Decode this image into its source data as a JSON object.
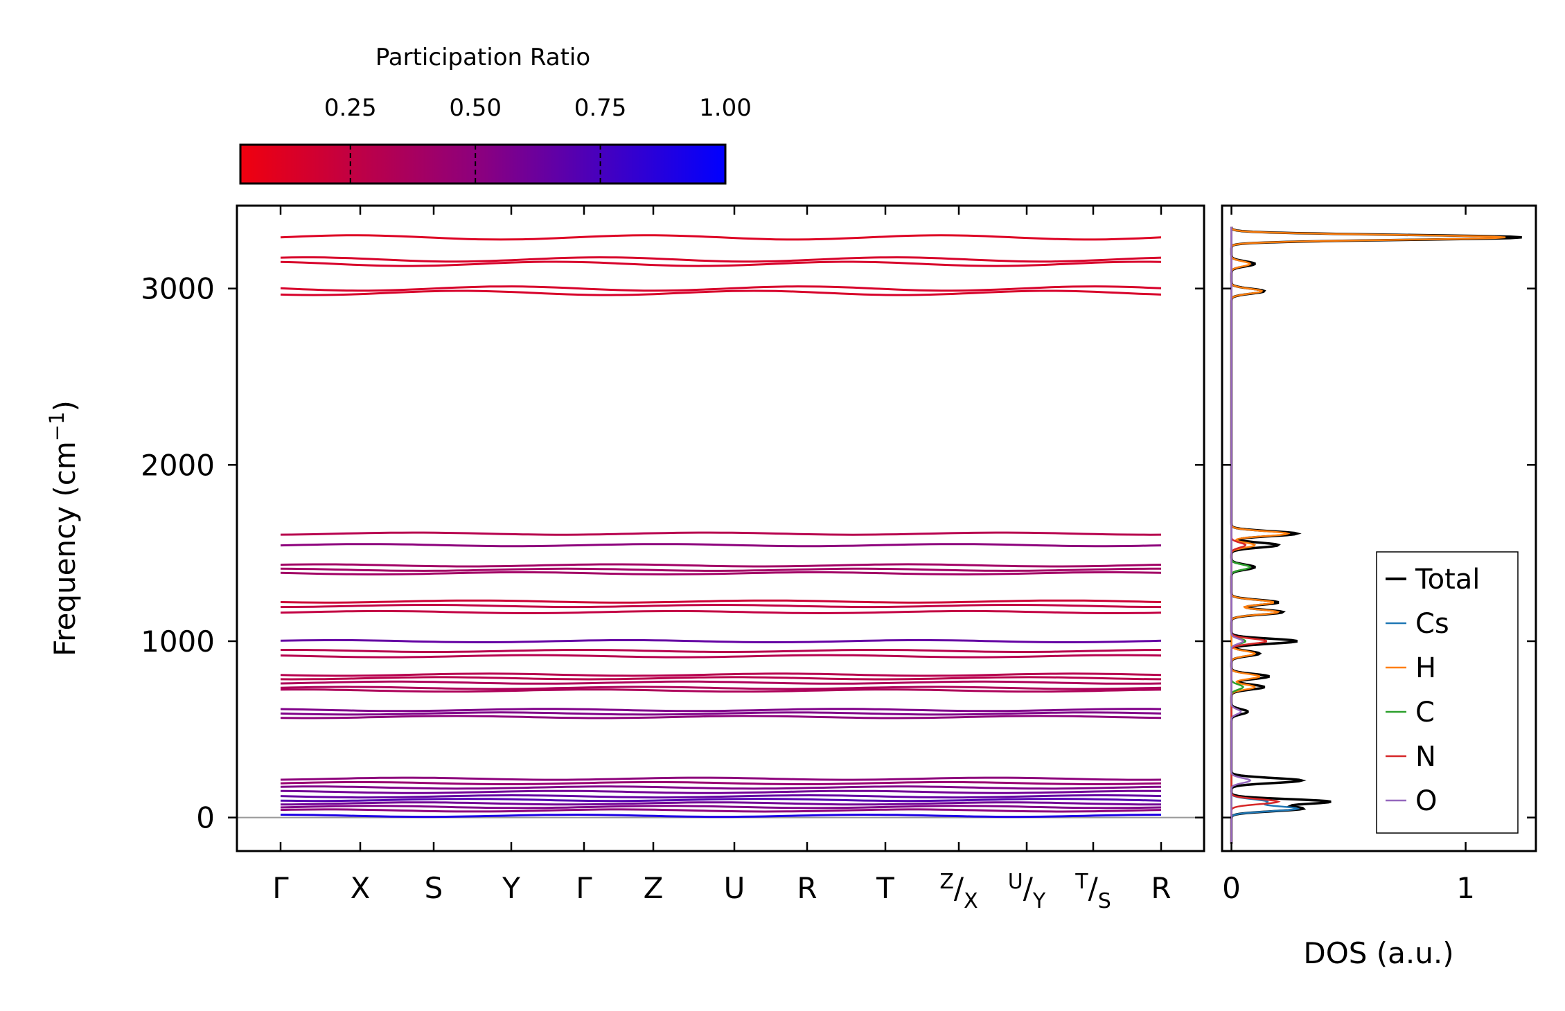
{
  "chart_data": [
    {
      "type": "line",
      "name": "phonon band structure",
      "ylabel": "Frequency (cm",
      "ylabel_sup": "−1",
      "ylabel_suffix": ")",
      "ylim": [
        -190,
        3470
      ],
      "yticks": [
        0,
        1000,
        2000,
        3000
      ],
      "ytick_labels": [
        "0",
        "1000",
        "2000",
        "3000"
      ],
      "xticks": [
        {
          "label": "Γ"
        },
        {
          "label": "X"
        },
        {
          "label": "S"
        },
        {
          "label": "Y"
        },
        {
          "label": "Γ"
        },
        {
          "label": "Z"
        },
        {
          "label": "U"
        },
        {
          "label": "R"
        },
        {
          "label": "T"
        },
        {
          "label": "X",
          "sup": "Z"
        },
        {
          "label": "Y",
          "sup": "U"
        },
        {
          "label": "S",
          "sup": "T"
        },
        {
          "label": "R"
        }
      ],
      "band_frequencies_cm1": [
        {
          "f": 3290,
          "pr": 0.12
        },
        {
          "f": 3165,
          "pr": 0.15
        },
        {
          "f": 3140,
          "pr": 0.15
        },
        {
          "f": 3000,
          "pr": 0.15
        },
        {
          "f": 2975,
          "pr": 0.15
        },
        {
          "f": 1610,
          "pr": 0.3
        },
        {
          "f": 1545,
          "pr": 0.5
        },
        {
          "f": 1430,
          "pr": 0.4
        },
        {
          "f": 1405,
          "pr": 0.4
        },
        {
          "f": 1385,
          "pr": 0.4
        },
        {
          "f": 1225,
          "pr": 0.2
        },
        {
          "f": 1200,
          "pr": 0.25
        },
        {
          "f": 1165,
          "pr": 0.25
        },
        {
          "f": 1000,
          "pr": 0.65
        },
        {
          "f": 945,
          "pr": 0.3
        },
        {
          "f": 915,
          "pr": 0.3
        },
        {
          "f": 810,
          "pr": 0.3
        },
        {
          "f": 790,
          "pr": 0.3
        },
        {
          "f": 765,
          "pr": 0.35
        },
        {
          "f": 735,
          "pr": 0.35
        },
        {
          "f": 720,
          "pr": 0.35
        },
        {
          "f": 610,
          "pr": 0.55
        },
        {
          "f": 590,
          "pr": 0.55
        },
        {
          "f": 570,
          "pr": 0.5
        },
        {
          "f": 220,
          "pr": 0.5
        },
        {
          "f": 195,
          "pr": 0.45
        },
        {
          "f": 170,
          "pr": 0.55
        },
        {
          "f": 145,
          "pr": 0.6
        },
        {
          "f": 120,
          "pr": 0.65
        },
        {
          "f": 100,
          "pr": 0.7
        },
        {
          "f": 80,
          "pr": 0.6
        },
        {
          "f": 60,
          "pr": 0.55
        },
        {
          "f": 40,
          "pr": 0.5
        },
        {
          "f": 10,
          "pr": 0.9
        }
      ],
      "colorbar": {
        "title": "Participation Ratio",
        "min": 0.03,
        "max": 1.0,
        "low_color": "#f0000e",
        "mid_color": "#8a0080",
        "high_color": "#0000ff",
        "ticks": [
          0.25,
          0.5,
          0.75,
          1.0
        ],
        "tick_labels": [
          "0.25",
          "0.50",
          "0.75",
          "1.00"
        ]
      }
    },
    {
      "type": "line",
      "name": "phonon DOS",
      "xlabel": "DOS (a.u.)",
      "xlim": [
        -0.04,
        1.3
      ],
      "xticks": [
        0,
        1
      ],
      "xtick_labels": [
        "0",
        "1"
      ],
      "series": [
        {
          "name": "Total",
          "color": "#000000",
          "peaks": [
            [
              3290,
              1.24
            ],
            [
              3140,
              0.1
            ],
            [
              2985,
              0.14
            ],
            [
              1610,
              0.28
            ],
            [
              1545,
              0.2
            ],
            [
              1420,
              0.1
            ],
            [
              1220,
              0.2
            ],
            [
              1165,
              0.22
            ],
            [
              1000,
              0.28
            ],
            [
              930,
              0.12
            ],
            [
              800,
              0.16
            ],
            [
              740,
              0.14
            ],
            [
              600,
              0.07
            ],
            [
              210,
              0.3
            ],
            [
              90,
              0.42
            ],
            [
              50,
              0.3
            ]
          ]
        },
        {
          "name": "Cs",
          "color": "#1f77b4",
          "peaks": [
            [
              50,
              0.28
            ],
            [
              90,
              0.15
            ]
          ]
        },
        {
          "name": "H",
          "color": "#ff7f0e",
          "peaks": [
            [
              3290,
              1.17
            ],
            [
              3140,
              0.08
            ],
            [
              2985,
              0.13
            ],
            [
              1610,
              0.24
            ],
            [
              1545,
              0.1
            ],
            [
              1220,
              0.18
            ],
            [
              1165,
              0.2
            ],
            [
              930,
              0.1
            ],
            [
              800,
              0.12
            ],
            [
              740,
              0.1
            ]
          ]
        },
        {
          "name": "C",
          "color": "#2ca02c",
          "peaks": [
            [
              1420,
              0.08
            ],
            [
              1000,
              0.06
            ],
            [
              740,
              0.05
            ]
          ]
        },
        {
          "name": "N",
          "color": "#d62728",
          "peaks": [
            [
              1545,
              0.06
            ],
            [
              1000,
              0.15
            ],
            [
              90,
              0.2
            ]
          ]
        },
        {
          "name": "O",
          "color": "#9467bd",
          "peaks": [
            [
              1000,
              0.05
            ],
            [
              600,
              0.04
            ],
            [
              210,
              0.08
            ]
          ]
        }
      ],
      "legend": "lower-right"
    }
  ]
}
